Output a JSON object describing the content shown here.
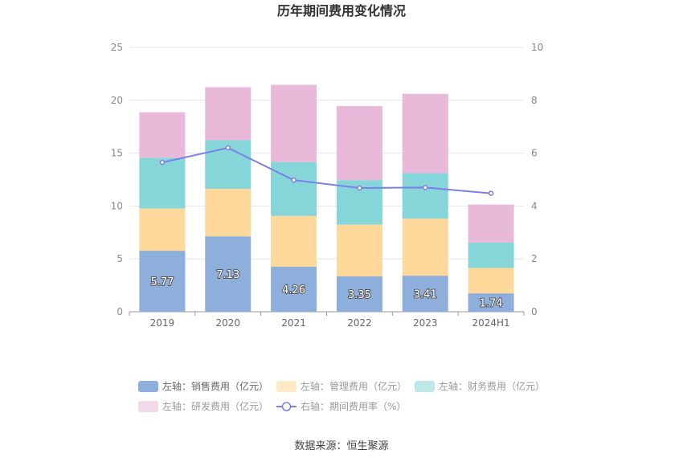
{
  "chart_data": {
    "type": "bar",
    "stacked": true,
    "title": "历年期间费用变化情况",
    "categories": [
      "2019",
      "2020",
      "2021",
      "2022",
      "2023",
      "2024H1"
    ],
    "series": [
      {
        "name": "左轴：销售费用（亿元）",
        "axis": "left",
        "color": "#8eaedb",
        "values": [
          5.77,
          7.13,
          4.26,
          3.35,
          3.41,
          1.74
        ],
        "show_labels": true
      },
      {
        "name": "左轴：管理费用（亿元）",
        "axis": "left",
        "color": "#ffd89b",
        "values": [
          4.0,
          4.5,
          4.8,
          4.9,
          5.4,
          2.4
        ]
      },
      {
        "name": "左轴：财务费用（亿元）",
        "axis": "left",
        "color": "#86d5d9",
        "values": [
          4.8,
          4.6,
          5.1,
          4.2,
          4.3,
          2.4
        ]
      },
      {
        "name": "左轴：研发费用（亿元）",
        "axis": "left",
        "color": "#e8b9d9",
        "values": [
          4.3,
          5.0,
          7.3,
          7.0,
          7.5,
          3.6
        ]
      },
      {
        "name": "右轴：期间费用率（%）",
        "axis": "right",
        "type": "line",
        "color": "#7b7fe8",
        "values": [
          5.65,
          6.2,
          4.98,
          4.68,
          4.7,
          4.48
        ]
      }
    ],
    "yleft": {
      "min": 0,
      "max": 25,
      "ticks": [
        0,
        5,
        10,
        15,
        20,
        25
      ]
    },
    "yright": {
      "min": 0,
      "max": 10,
      "ticks": [
        0,
        2,
        4,
        6,
        8,
        10
      ]
    },
    "grid": true,
    "legend_position": "bottom",
    "source": "数据来源：恒生聚源"
  }
}
